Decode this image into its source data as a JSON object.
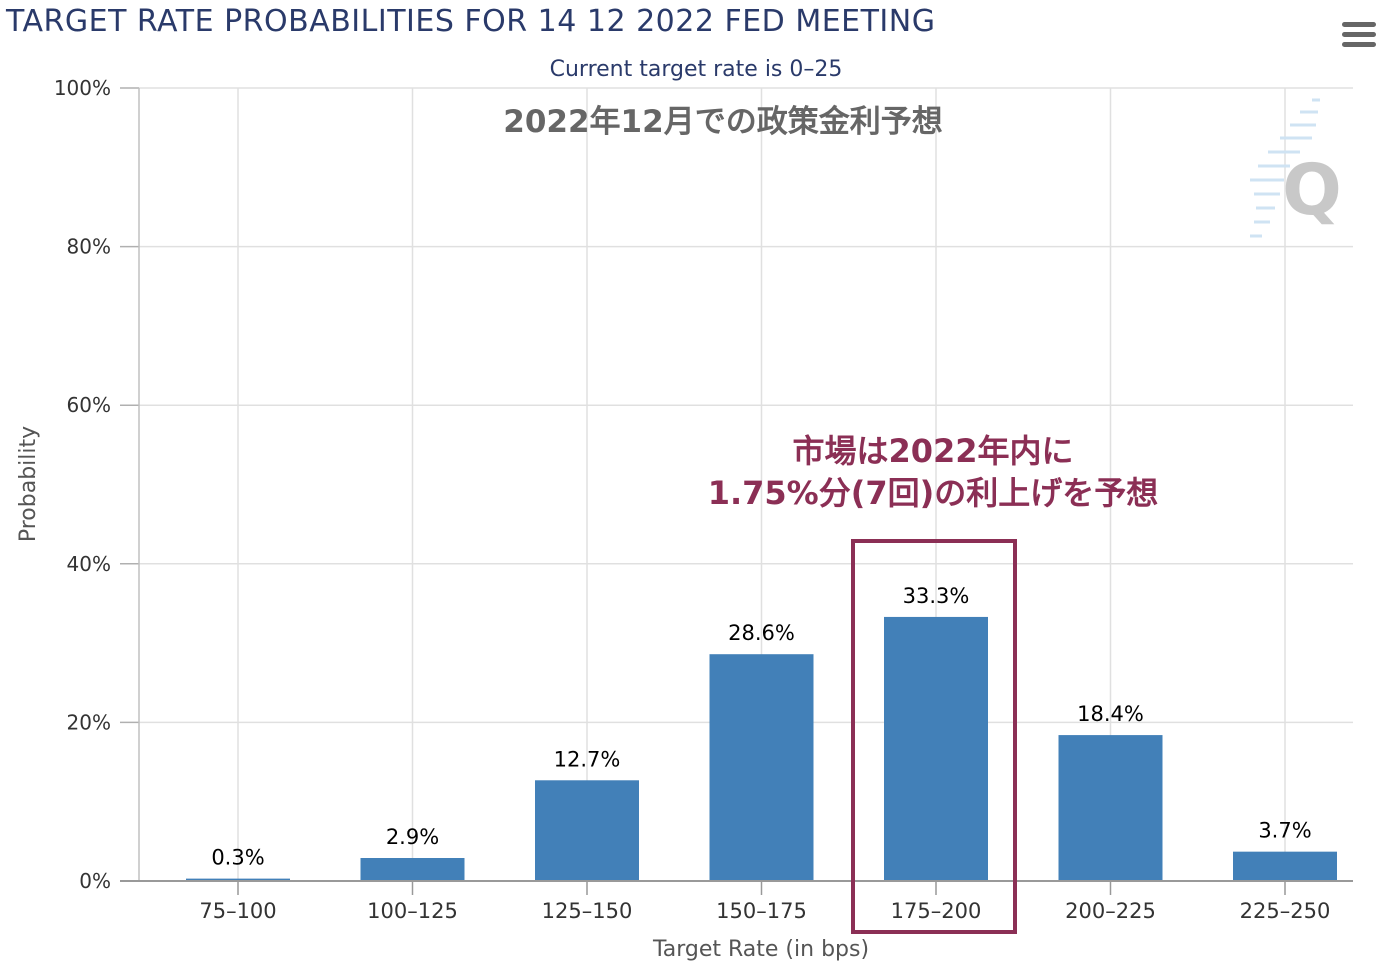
{
  "header": {
    "title": "TARGET RATE PROBABILITIES FOR 14 12 2022 FED MEETING",
    "subtitle": "Current target rate is 0–25",
    "menu_icon": "hamburger-menu-icon"
  },
  "annotations": {
    "jp_title": "2022年12月での政策金利予想",
    "callout_line1": "市場は2022年内に",
    "callout_line2": "1.75%分(7回)の利上げを予想",
    "watermark": "Q"
  },
  "colors": {
    "bar": "#4280b8",
    "title": "#2a3a6a",
    "callout": "#8b2f55",
    "highlight_box": "#8b2f55"
  },
  "chart_data": {
    "type": "bar",
    "title": "TARGET RATE PROBABILITIES FOR 14 12 2022 FED MEETING",
    "subtitle": "Current target rate is 0–25",
    "xlabel": "Target Rate (in bps)",
    "ylabel": "Probability",
    "categories": [
      "75–100",
      "100–125",
      "125–150",
      "150–175",
      "175–200",
      "200–225",
      "225–250"
    ],
    "values": [
      0.3,
      2.9,
      12.7,
      28.6,
      33.3,
      18.4,
      3.7
    ],
    "data_labels": [
      "0.3%",
      "2.9%",
      "12.7%",
      "28.6%",
      "33.3%",
      "18.4%",
      "3.7%"
    ],
    "yticks": [
      "0%",
      "20%",
      "40%",
      "60%",
      "80%",
      "100%"
    ],
    "ylim": [
      0,
      100
    ],
    "grid": true,
    "legend": "none",
    "highlighted_category": "175–200"
  }
}
